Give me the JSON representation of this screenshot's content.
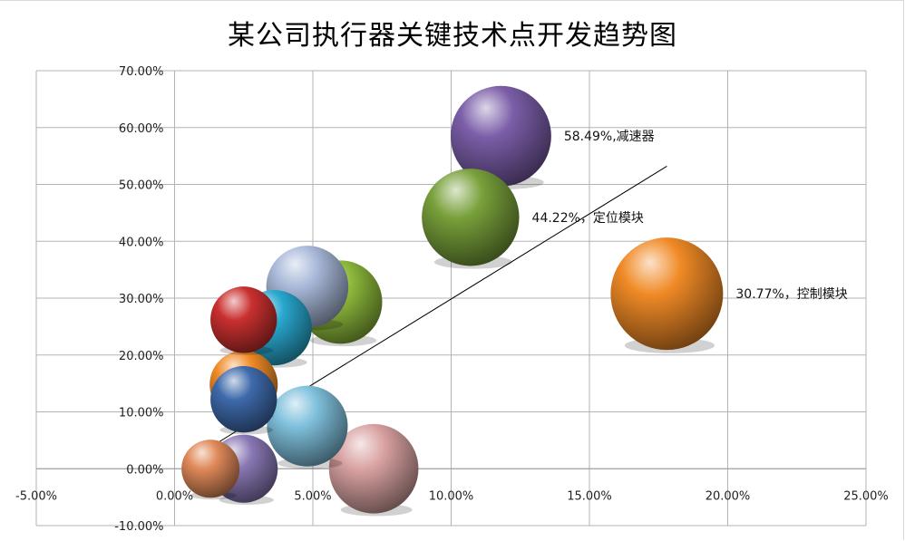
{
  "chart_data": {
    "type": "bubble",
    "title": "某公司执行器关键技术点开发趋势图",
    "xlabel": "",
    "ylabel": "",
    "xlim": [
      -0.05,
      0.25
    ],
    "ylim": [
      -0.1,
      0.7
    ],
    "x_ticks": [
      "-5.00%",
      "0.00%",
      "5.00%",
      "10.00%",
      "15.00%",
      "20.00%",
      "25.00%"
    ],
    "y_ticks": [
      "70.00%",
      "60.00%",
      "50.00%",
      "40.00%",
      "30.00%",
      "20.00%",
      "10.00%",
      "0.00%",
      "-10.00%"
    ],
    "grid": true,
    "legend": "none",
    "trendline": {
      "x": [
        0.012,
        0.178
      ],
      "y": [
        0.035,
        0.532
      ]
    },
    "points": [
      {
        "x": 0.118,
        "y": 0.5849,
        "size": 48,
        "color": "#7b5ea8",
        "label": "58.49%,减速器"
      },
      {
        "x": 0.107,
        "y": 0.4422,
        "size": 45,
        "color": "#78a03a",
        "label": "44.22%，定位模块"
      },
      {
        "x": 0.178,
        "y": 0.3077,
        "size": 60,
        "color": "#f08a26",
        "label": "30.77%，控制模块"
      },
      {
        "x": 0.06,
        "y": 0.293,
        "size": 33,
        "color": "#8fbb3c",
        "label": ""
      },
      {
        "x": 0.048,
        "y": 0.32,
        "size": 32,
        "color": "#a9b9d9",
        "label": ""
      },
      {
        "x": 0.025,
        "y": 0.262,
        "size": 21,
        "color": "#c9302f",
        "label": ""
      },
      {
        "x": 0.036,
        "y": 0.248,
        "size": 27,
        "color": "#29a8cf",
        "label": ""
      },
      {
        "x": 0.025,
        "y": 0.148,
        "size": 22,
        "color": "#f08a26",
        "label": ""
      },
      {
        "x": 0.025,
        "y": 0.122,
        "size": 21,
        "color": "#3e6aab",
        "label": ""
      },
      {
        "x": 0.048,
        "y": 0.075,
        "size": 31,
        "color": "#7fc0dc",
        "label": ""
      },
      {
        "x": 0.072,
        "y": 0.0,
        "size": 38,
        "color": "#d9a2a2",
        "label": ""
      },
      {
        "x": 0.025,
        "y": 0.0,
        "size": 22,
        "color": "#8977b3",
        "label": ""
      },
      {
        "x": 0.013,
        "y": 0.0,
        "size": 16,
        "color": "#e08a5a",
        "label": ""
      }
    ]
  }
}
